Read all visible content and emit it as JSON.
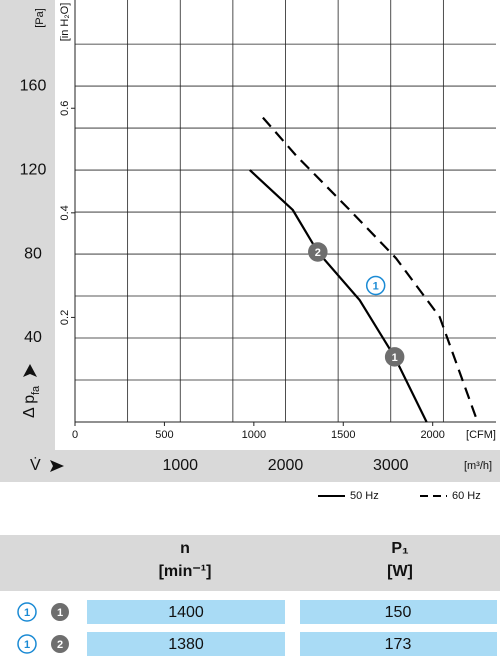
{
  "chart_data": {
    "type": "line",
    "x_label": "[m³/h]",
    "x_symbol": "V̇",
    "xlim": [
      0,
      4000
    ],
    "xticks": [
      1000,
      2000,
      3000
    ],
    "xminor": [
      500,
      1500,
      2500,
      3500
    ],
    "x2_label": "[CFM]",
    "x2lim": [
      0,
      2354
    ],
    "x2ticks": [
      0,
      500,
      1000,
      1500,
      2000
    ],
    "y_label": "[Pa]",
    "y_symbol": "Δ p",
    "y_symbol_sub": "fa",
    "ylim": [
      0,
      201
    ],
    "yticks": [
      40,
      80,
      120,
      160
    ],
    "yminor": [
      20,
      60,
      100,
      140,
      180
    ],
    "y2_label": "[in H₂O]",
    "y2lim": [
      0,
      0.807
    ],
    "y2ticks": [
      0.2,
      0.4,
      0.6
    ],
    "grid": true,
    "series": [
      {
        "name": "50 Hz",
        "color": "#000000",
        "dashed": false,
        "x": [
          1661,
          2069,
          2307,
          2705,
          3037,
          3341
        ],
        "values": [
          120,
          101,
          81,
          58,
          31,
          0
        ]
      },
      {
        "name": "60 Hz",
        "color": "#000000",
        "dashed": true,
        "x": [
          1785,
          2100,
          2610,
          3050,
          3465,
          3825
        ],
        "values": [
          145,
          127,
          101,
          78,
          50,
          0
        ]
      }
    ],
    "points": [
      {
        "label": "1",
        "style": "filled",
        "x": 3037,
        "y": 31
      },
      {
        "label": "2",
        "style": "filled",
        "x": 2307,
        "y": 81
      },
      {
        "label": "1",
        "style": "outline",
        "x": 2857,
        "y": 65
      }
    ]
  },
  "table": {
    "header": {
      "n": "n",
      "n_unit": "[min⁻¹]",
      "p": "P₁",
      "p_unit": "[W]"
    },
    "rows": [
      {
        "markers": [
          "1",
          "1"
        ],
        "n": 1400,
        "p": 150
      },
      {
        "markers": [
          "1",
          "2"
        ],
        "n": 1380,
        "p": 173
      }
    ]
  }
}
